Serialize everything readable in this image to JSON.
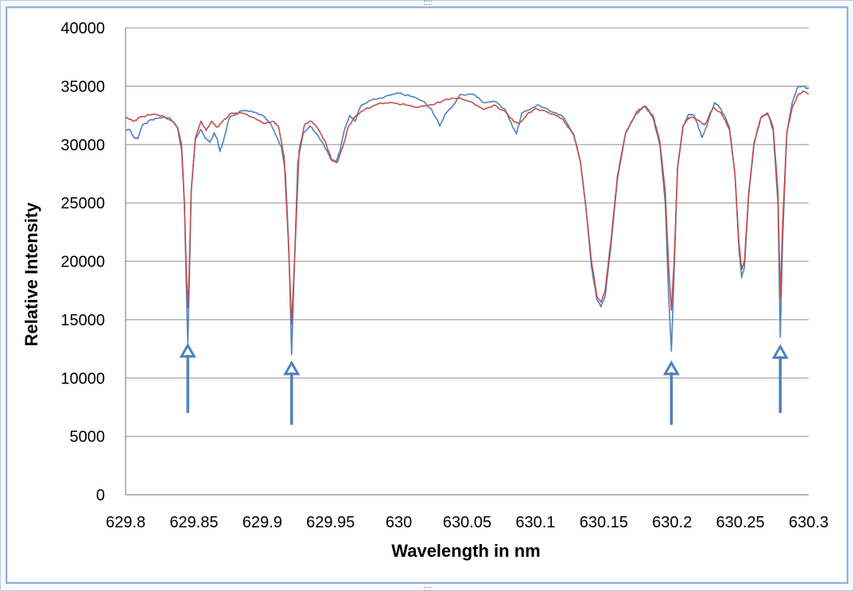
{
  "chart_data": {
    "type": "line",
    "title": "",
    "xlabel": "Wavelength in nm",
    "ylabel": "Relative Intensity",
    "xlim": [
      629.8,
      630.3
    ],
    "ylim": [
      0,
      40000
    ],
    "x_ticks": [
      "629.8",
      "629.85",
      "629.9",
      "629.95",
      "630",
      "630.05",
      "630.1",
      "630.15",
      "630.2",
      "630.25",
      "630.3"
    ],
    "y_ticks": [
      "0",
      "5000",
      "10000",
      "15000",
      "20000",
      "25000",
      "30000",
      "35000",
      "40000"
    ],
    "grid": true,
    "legend": "none",
    "series": [
      {
        "color": "#4f81bd",
        "points": [
          [
            629.8,
            31200
          ],
          [
            629.803,
            31300
          ],
          [
            629.806,
            30600
          ],
          [
            629.809,
            30500
          ],
          [
            629.812,
            31600
          ],
          [
            629.818,
            32100
          ],
          [
            629.825,
            32300
          ],
          [
            629.832,
            32300
          ],
          [
            629.838,
            31500
          ],
          [
            629.841,
            30000
          ],
          [
            629.843,
            25000
          ],
          [
            629.8445,
            17500
          ],
          [
            629.8455,
            13000
          ],
          [
            629.8465,
            17500
          ],
          [
            629.848,
            26000
          ],
          [
            629.851,
            30500
          ],
          [
            629.855,
            31300
          ],
          [
            629.858,
            30600
          ],
          [
            629.862,
            30200
          ],
          [
            629.865,
            31000
          ],
          [
            629.867,
            30500
          ],
          [
            629.869,
            29400
          ],
          [
            629.872,
            30500
          ],
          [
            629.876,
            32300
          ],
          [
            629.885,
            32900
          ],
          [
            629.893,
            32800
          ],
          [
            629.9,
            32500
          ],
          [
            629.906,
            31800
          ],
          [
            629.91,
            30800
          ],
          [
            629.914,
            29800
          ],
          [
            629.917,
            27500
          ],
          [
            629.9195,
            21000
          ],
          [
            629.9215,
            12000
          ],
          [
            629.9235,
            19500
          ],
          [
            629.926,
            28500
          ],
          [
            629.93,
            31000
          ],
          [
            629.935,
            31600
          ],
          [
            629.94,
            30900
          ],
          [
            629.945,
            30000
          ],
          [
            629.95,
            28800
          ],
          [
            629.954,
            28500
          ],
          [
            629.957,
            29500
          ],
          [
            629.96,
            31200
          ],
          [
            629.964,
            32500
          ],
          [
            629.968,
            32000
          ],
          [
            629.972,
            33300
          ],
          [
            629.98,
            33800
          ],
          [
            629.99,
            34100
          ],
          [
            630.0,
            34400
          ],
          [
            630.01,
            34100
          ],
          [
            630.018,
            33700
          ],
          [
            630.024,
            33000
          ],
          [
            630.03,
            31600
          ],
          [
            630.034,
            32600
          ],
          [
            630.04,
            33400
          ],
          [
            630.045,
            34300
          ],
          [
            630.055,
            34300
          ],
          [
            630.062,
            33600
          ],
          [
            630.07,
            33700
          ],
          [
            630.078,
            33000
          ],
          [
            630.083,
            31600
          ],
          [
            630.086,
            30900
          ],
          [
            630.09,
            32700
          ],
          [
            630.096,
            33000
          ],
          [
            630.102,
            33400
          ],
          [
            630.11,
            32900
          ],
          [
            630.12,
            32400
          ],
          [
            630.128,
            30900
          ],
          [
            630.133,
            28500
          ],
          [
            630.137,
            24500
          ],
          [
            630.141,
            19500
          ],
          [
            630.145,
            16700
          ],
          [
            630.148,
            16100
          ],
          [
            630.151,
            17000
          ],
          [
            630.155,
            21000
          ],
          [
            630.16,
            27000
          ],
          [
            630.166,
            31000
          ],
          [
            630.173,
            32500
          ],
          [
            630.18,
            33300
          ],
          [
            630.186,
            32300
          ],
          [
            630.191,
            30000
          ],
          [
            630.195,
            25000
          ],
          [
            630.1975,
            17000
          ],
          [
            630.1995,
            12300
          ],
          [
            630.2015,
            19000
          ],
          [
            630.204,
            28000
          ],
          [
            630.208,
            31500
          ],
          [
            630.212,
            32600
          ],
          [
            630.216,
            32500
          ],
          [
            630.219,
            31600
          ],
          [
            630.222,
            30600
          ],
          [
            630.226,
            31800
          ],
          [
            630.231,
            33600
          ],
          [
            630.236,
            33000
          ],
          [
            630.242,
            31500
          ],
          [
            630.246,
            27500
          ],
          [
            630.249,
            21000
          ],
          [
            630.251,
            18600
          ],
          [
            630.253,
            19500
          ],
          [
            630.256,
            25500
          ],
          [
            630.26,
            30000
          ],
          [
            630.265,
            32300
          ],
          [
            630.27,
            32700
          ],
          [
            630.274,
            31200
          ],
          [
            630.2775,
            25000
          ],
          [
            630.2792,
            13500
          ],
          [
            630.281,
            22000
          ],
          [
            630.284,
            31000
          ],
          [
            630.288,
            33600
          ],
          [
            630.292,
            34900
          ],
          [
            630.296,
            35000
          ],
          [
            630.3,
            34800
          ]
        ]
      },
      {
        "color": "#c0504d",
        "points": [
          [
            629.8,
            32300
          ],
          [
            629.806,
            32000
          ],
          [
            629.812,
            32400
          ],
          [
            629.82,
            32600
          ],
          [
            629.828,
            32400
          ],
          [
            629.834,
            32000
          ],
          [
            629.838,
            31400
          ],
          [
            629.841,
            29500
          ],
          [
            629.843,
            25000
          ],
          [
            629.8445,
            19000
          ],
          [
            629.8455,
            16000
          ],
          [
            629.8465,
            19000
          ],
          [
            629.848,
            26000
          ],
          [
            629.851,
            30500
          ],
          [
            629.855,
            32000
          ],
          [
            629.859,
            31200
          ],
          [
            629.863,
            32000
          ],
          [
            629.867,
            31500
          ],
          [
            629.871,
            32000
          ],
          [
            629.878,
            32700
          ],
          [
            629.886,
            32700
          ],
          [
            629.894,
            32300
          ],
          [
            629.902,
            31800
          ],
          [
            629.908,
            32000
          ],
          [
            629.912,
            31500
          ],
          [
            629.916,
            29000
          ],
          [
            629.919,
            22000
          ],
          [
            629.9215,
            14600
          ],
          [
            629.924,
            21000
          ],
          [
            629.927,
            29500
          ],
          [
            629.931,
            31700
          ],
          [
            629.936,
            32000
          ],
          [
            629.941,
            31300
          ],
          [
            629.946,
            30300
          ],
          [
            629.951,
            28600
          ],
          [
            629.955,
            28500
          ],
          [
            629.959,
            29800
          ],
          [
            629.963,
            31500
          ],
          [
            629.968,
            32400
          ],
          [
            629.975,
            33000
          ],
          [
            629.985,
            33500
          ],
          [
            629.995,
            33600
          ],
          [
            630.005,
            33400
          ],
          [
            630.015,
            33200
          ],
          [
            630.025,
            33400
          ],
          [
            630.035,
            33900
          ],
          [
            630.045,
            34000
          ],
          [
            630.055,
            33500
          ],
          [
            630.062,
            33000
          ],
          [
            630.07,
            33400
          ],
          [
            630.078,
            32800
          ],
          [
            630.084,
            32000
          ],
          [
            630.088,
            31800
          ],
          [
            630.094,
            32600
          ],
          [
            630.1,
            33100
          ],
          [
            630.11,
            32700
          ],
          [
            630.12,
            32200
          ],
          [
            630.128,
            30800
          ],
          [
            630.133,
            28500
          ],
          [
            630.137,
            24500
          ],
          [
            630.141,
            20000
          ],
          [
            630.145,
            17000
          ],
          [
            630.148,
            16500
          ],
          [
            630.151,
            17500
          ],
          [
            630.155,
            21500
          ],
          [
            630.16,
            27300
          ],
          [
            630.166,
            31000
          ],
          [
            630.174,
            32800
          ],
          [
            630.18,
            33300
          ],
          [
            630.186,
            32500
          ],
          [
            630.191,
            30300
          ],
          [
            630.195,
            26000
          ],
          [
            630.1975,
            19500
          ],
          [
            630.1995,
            15800
          ],
          [
            630.2015,
            20000
          ],
          [
            630.204,
            28000
          ],
          [
            630.208,
            31600
          ],
          [
            630.212,
            32300
          ],
          [
            630.216,
            32300
          ],
          [
            630.22,
            32000
          ],
          [
            630.224,
            31700
          ],
          [
            630.23,
            33200
          ],
          [
            630.236,
            32700
          ],
          [
            630.242,
            31300
          ],
          [
            630.246,
            27500
          ],
          [
            630.249,
            21500
          ],
          [
            630.251,
            19300
          ],
          [
            630.253,
            20000
          ],
          [
            630.256,
            25700
          ],
          [
            630.26,
            30200
          ],
          [
            630.265,
            32300
          ],
          [
            630.27,
            32700
          ],
          [
            630.274,
            31500
          ],
          [
            630.2775,
            26000
          ],
          [
            630.2792,
            16800
          ],
          [
            630.281,
            23500
          ],
          [
            630.284,
            31000
          ],
          [
            630.288,
            33200
          ],
          [
            630.292,
            34200
          ],
          [
            630.296,
            34600
          ],
          [
            630.3,
            34300
          ]
        ]
      }
    ],
    "annotations": [
      {
        "type": "arrow",
        "x": 629.8455,
        "y_from": 7000,
        "y_to": 12800,
        "color": "#4f81bd"
      },
      {
        "type": "arrow",
        "x": 629.9215,
        "y_from": 6000,
        "y_to": 11300,
        "color": "#4f81bd"
      },
      {
        "type": "arrow",
        "x": 630.1995,
        "y_from": 6000,
        "y_to": 11300,
        "color": "#4f81bd"
      },
      {
        "type": "arrow",
        "x": 630.2792,
        "y_from": 7000,
        "y_to": 12700,
        "color": "#4f81bd"
      }
    ]
  }
}
